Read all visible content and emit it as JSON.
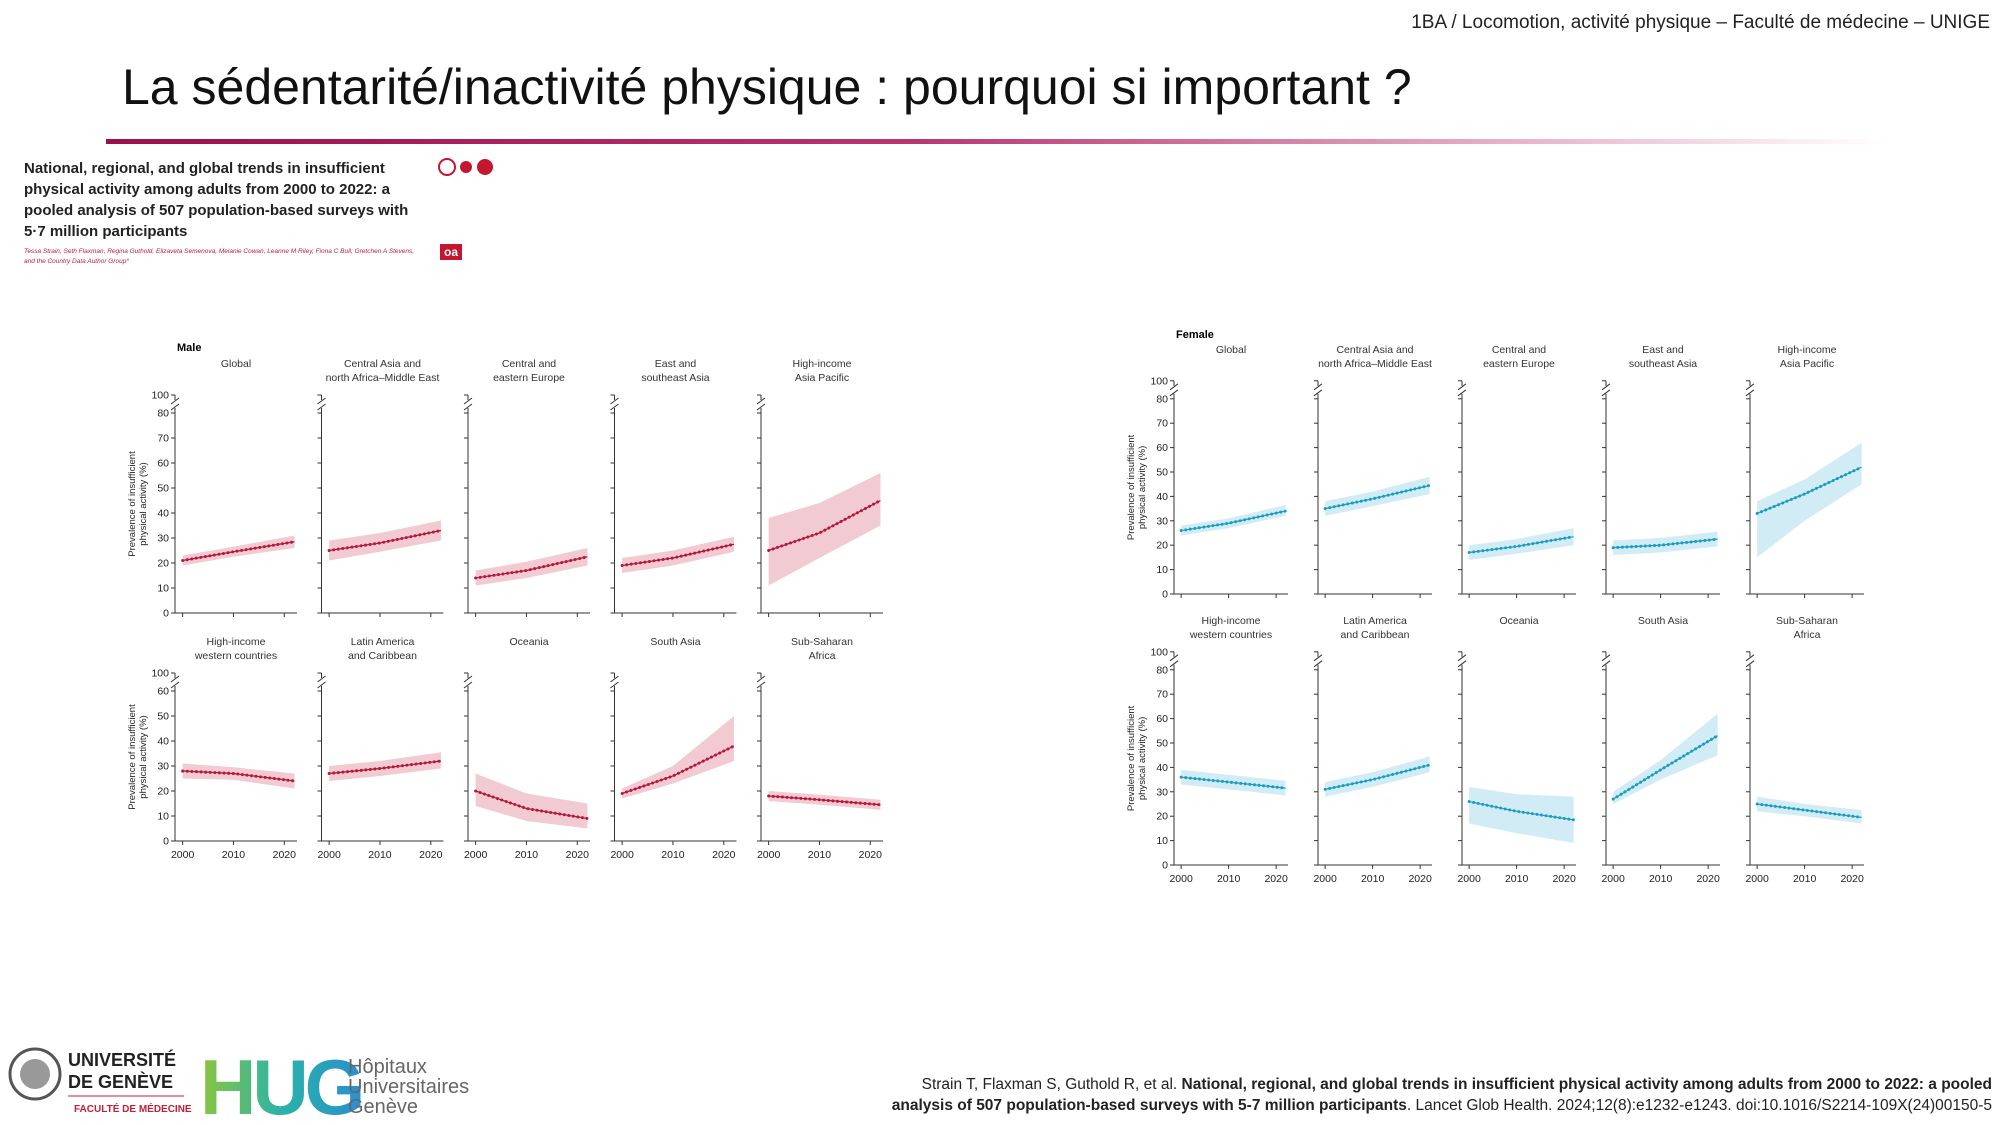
{
  "header": "1BA / Locomotion, activité physique – Faculté de médecine – UNIGE",
  "title": "La sédentarité/inactivité physique : pourquoi si important ?",
  "paper": {
    "title": "National, regional, and global trends in insufficient physical activity among adults from 2000 to 2022: a pooled analysis of 507 population-based surveys with 5·7 million participants",
    "authors": "Tessa Strain, Seth Flaxman, Regina Guthold, Elizaveta Semenova, Melanie Cowan, Leanne M Riley, Fiona C Bull, Gretchen A Stevens, and the Country Data Author Group*",
    "badge": "oa"
  },
  "logos": {
    "unige": [
      "UNIVERSITÉ",
      "DE GENÈVE"
    ],
    "unige_sub": "FACULTÉ DE MÉDECINE",
    "hug": "HUG",
    "hug_name": [
      "Hôpitaux",
      "Universitaires",
      "Genève"
    ]
  },
  "citation": {
    "authors": "Strain T, Flaxman S, Guthold R, et al.",
    "title": "National, regional, and global trends in insufficient physical activity among adults from 2000 to 2022: a pooled analysis of 507 population-based surveys with 5-7 million participants",
    "rest": ". Lancet Glob Health. 2024;12(8):e1232-e1243. doi:10.1016/S2214-109X(24)00150-5"
  },
  "chart_data": [
    {
      "type": "line",
      "label": "Male",
      "color": "#b5173a",
      "band_color": "#eaa7b2",
      "ylabel": [
        "Prevalence of insufficient",
        "physical activity (%)"
      ],
      "x": [
        2000,
        2010,
        2022
      ],
      "xlim": [
        1998.5,
        2022.5
      ],
      "xticks": [
        2000,
        2010,
        2020
      ],
      "ylim": [
        0,
        100
      ],
      "rows": [
        {
          "yticks": [
            0,
            10,
            20,
            30,
            40,
            50,
            60,
            70,
            80,
            100
          ],
          "panels": [
            {
              "title": [
                "Global"
              ],
              "values": [
                21,
                24.5,
                28.5
              ],
              "lower": [
                19,
                22.5,
                26
              ],
              "upper": [
                23,
                26.5,
                31
              ]
            },
            {
              "title": [
                "Central Asia and",
                "north Africa–Middle East"
              ],
              "values": [
                25,
                28,
                33
              ],
              "lower": [
                21,
                24.5,
                29
              ],
              "upper": [
                29,
                32,
                37
              ]
            },
            {
              "title": [
                "Central and",
                "eastern Europe"
              ],
              "values": [
                14,
                17,
                22.5
              ],
              "lower": [
                11,
                14,
                19
              ],
              "upper": [
                17,
                20.5,
                26
              ]
            },
            {
              "title": [
                "East and",
                "southeast Asia"
              ],
              "values": [
                19,
                22,
                27.5
              ],
              "lower": [
                16,
                19,
                24.5
              ],
              "upper": [
                22,
                25,
                30.5
              ]
            },
            {
              "title": [
                "High-income",
                "Asia Pacific"
              ],
              "values": [
                25,
                32,
                45
              ],
              "lower": [
                11,
                22,
                35
              ],
              "upper": [
                38,
                44,
                56
              ]
            }
          ]
        },
        {
          "yticks": [
            0,
            10,
            20,
            30,
            40,
            50,
            60,
            100
          ],
          "panels": [
            {
              "title": [
                "High-income",
                "western countries"
              ],
              "values": [
                28,
                27,
                24
              ],
              "lower": [
                25,
                24.5,
                21
              ],
              "upper": [
                31,
                29.5,
                27
              ]
            },
            {
              "title": [
                "Latin America",
                "and Caribbean"
              ],
              "values": [
                27,
                29,
                32
              ],
              "lower": [
                24,
                26,
                29
              ],
              "upper": [
                30,
                32,
                35.5
              ]
            },
            {
              "title": [
                "Oceania"
              ],
              "values": [
                20,
                13,
                9
              ],
              "lower": [
                14,
                8,
                5
              ],
              "upper": [
                27,
                19,
                15
              ]
            },
            {
              "title": [
                "South Asia"
              ],
              "values": [
                19,
                26,
                38
              ],
              "lower": [
                17,
                23,
                32
              ],
              "upper": [
                21,
                30,
                50
              ]
            },
            {
              "title": [
                "Sub-Saharan",
                "Africa"
              ],
              "values": [
                18,
                16.5,
                14.5
              ],
              "lower": [
                16,
                14.5,
                12.5
              ],
              "upper": [
                20,
                18.5,
                16.5
              ]
            }
          ]
        }
      ]
    },
    {
      "type": "line",
      "label": "Female",
      "color": "#1a9cc0",
      "band_color": "#b4e0ee",
      "ylabel": [
        "Prevalence of insufficient",
        "physical activity (%)"
      ],
      "x": [
        2000,
        2010,
        2022
      ],
      "xlim": [
        1998.5,
        2022.5
      ],
      "xticks": [
        2000,
        2010,
        2020
      ],
      "ylim": [
        0,
        100
      ],
      "rows": [
        {
          "yticks": [
            0,
            10,
            20,
            30,
            40,
            50,
            60,
            70,
            80,
            100
          ],
          "panels": [
            {
              "title": [
                "Global"
              ],
              "values": [
                26,
                29,
                34
              ],
              "lower": [
                24,
                27,
                32
              ],
              "upper": [
                28,
                31,
                36.5
              ]
            },
            {
              "title": [
                "Central Asia and",
                "north Africa–Middle East"
              ],
              "values": [
                35,
                39,
                44.5
              ],
              "lower": [
                32,
                36,
                41
              ],
              "upper": [
                38,
                42,
                48
              ]
            },
            {
              "title": [
                "Central and",
                "eastern Europe"
              ],
              "values": [
                17,
                19.5,
                23.5
              ],
              "lower": [
                14,
                16.5,
                20
              ],
              "upper": [
                20,
                22.5,
                27
              ]
            },
            {
              "title": [
                "East and",
                "southeast Asia"
              ],
              "values": [
                19,
                20,
                22.5
              ],
              "lower": [
                16,
                17,
                19.5
              ],
              "upper": [
                22,
                23,
                25.5
              ]
            },
            {
              "title": [
                "High-income",
                "Asia Pacific"
              ],
              "values": [
                33,
                41,
                52
              ],
              "lower": [
                15,
                30,
                45
              ],
              "upper": [
                38,
                47,
                62
              ]
            }
          ]
        },
        {
          "yticks": [
            0,
            10,
            20,
            30,
            40,
            50,
            60,
            70,
            80,
            100
          ],
          "panels": [
            {
              "title": [
                "High-income",
                "western countries"
              ],
              "values": [
                36,
                34,
                31.5
              ],
              "lower": [
                33,
                31,
                28.5
              ],
              "upper": [
                39,
                37,
                34.5
              ]
            },
            {
              "title": [
                "Latin America",
                "and Caribbean"
              ],
              "values": [
                31,
                35,
                41
              ],
              "lower": [
                28,
                32,
                38
              ],
              "upper": [
                34,
                38,
                44.5
              ]
            },
            {
              "title": [
                "Oceania"
              ],
              "values": [
                26,
                22,
                18.5
              ],
              "lower": [
                17,
                13,
                9
              ],
              "upper": [
                32,
                29,
                28
              ]
            },
            {
              "title": [
                "South Asia"
              ],
              "values": [
                27,
                39,
                53
              ],
              "lower": [
                25,
                35,
                45
              ],
              "upper": [
                30,
                43,
                62
              ]
            },
            {
              "title": [
                "Sub-Saharan",
                "Africa"
              ],
              "values": [
                25,
                22.5,
                19.5
              ],
              "lower": [
                22,
                20,
                17
              ],
              "upper": [
                28,
                25,
                22.5
              ]
            }
          ]
        }
      ]
    }
  ]
}
